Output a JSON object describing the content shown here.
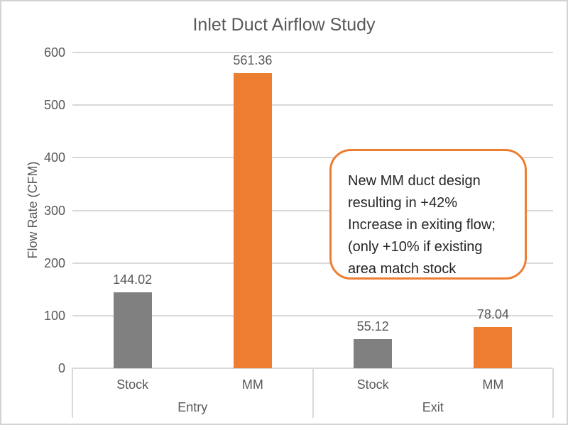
{
  "title": "Inlet Duct Airflow Study",
  "chart_data": {
    "type": "bar",
    "title": "Inlet Duct Airflow Study",
    "xlabel": "",
    "ylabel": "Flow Rate (CFM)",
    "ylim": [
      0,
      600
    ],
    "yticks": [
      0,
      100,
      200,
      300,
      400,
      500,
      600
    ],
    "grid": true,
    "legend": "none",
    "data_labels": true,
    "groups": [
      {
        "label": "Entry",
        "bars": [
          {
            "category": "Stock",
            "value": 144.02,
            "label": "144.02",
            "color": "#808080"
          },
          {
            "category": "MM",
            "value": 561.36,
            "label": "561.36",
            "color": "#ED7D31"
          }
        ]
      },
      {
        "label": "Exit",
        "bars": [
          {
            "category": "Stock",
            "value": 55.12,
            "label": "55.12",
            "color": "#808080"
          },
          {
            "category": "MM",
            "value": 78.04,
            "label": "78.04",
            "color": "#ED7D31"
          }
        ]
      }
    ]
  },
  "annotation": {
    "text": "New MM duct design\nresulting in +42%\nIncrease in exiting flow;\n(only +10% if existing\narea match stock",
    "border_color": "#ED7D31"
  },
  "colors": {
    "orange": "#ED7D31",
    "gray": "#808080",
    "text": "#595959",
    "gridline": "#D9D9D9",
    "annotation_text": "#262626",
    "background": "#FFFFFF",
    "border": "#D3D3D3"
  }
}
